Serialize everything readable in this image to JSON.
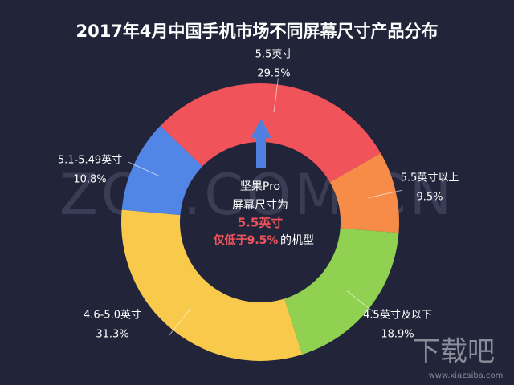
{
  "chart_data": {
    "type": "pie",
    "title": "2017年4月中国手机市场不同屏幕尺寸产品分布",
    "categories": [
      "5.5英寸",
      "5.5英寸以上",
      "4.5英寸及以下",
      "4.6-5.0英寸",
      "5.1-5.49英寸"
    ],
    "values": [
      29.5,
      9.5,
      18.9,
      31.3,
      10.8
    ],
    "value_labels": [
      "29.5%",
      "9.5%",
      "18.9%",
      "31.3%",
      "10.8%"
    ],
    "colors": [
      "#f0545a",
      "#f68c47",
      "#91d152",
      "#f8c94a",
      "#5186e6"
    ],
    "annotations": [
      "坚果Pro",
      "屏幕尺寸为",
      "5.5英寸",
      "仅低于9.5%",
      "的机型"
    ],
    "watermarks": [
      "ZOL.COM.CN",
      "下载吧",
      "www.xiazaiba.com"
    ]
  }
}
